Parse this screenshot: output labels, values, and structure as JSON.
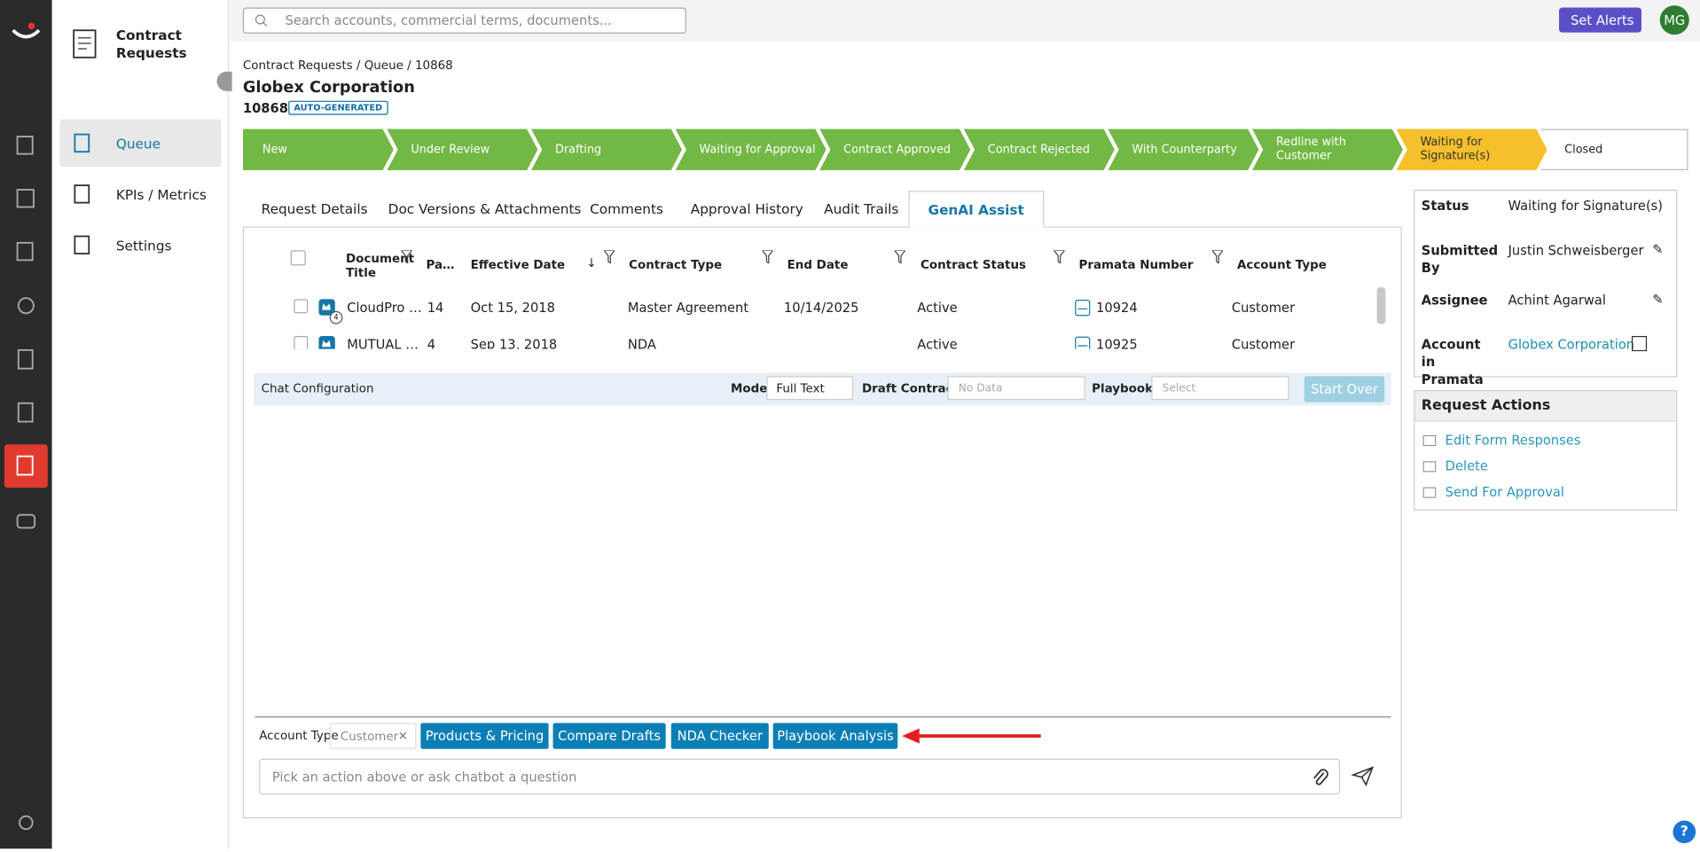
{
  "app": {
    "title": "Contract Requests"
  },
  "search_placeholder": "Search accounts, commercial terms, documents...",
  "header": {
    "set_alerts": "Set Alerts",
    "avatar": "MG"
  },
  "nav": [
    "Queue",
    "KPIs / Metrics",
    "Settings"
  ],
  "breadcrumb": "Contract Requests / Queue / 10868",
  "record": {
    "title": "Globex Corporation",
    "id": "10868",
    "badge": "AUTO-GENERATED"
  },
  "stages": [
    "New",
    "Under Review",
    "Drafting",
    "Waiting for Approval",
    "Contract Approved",
    "Contract Rejected",
    "With Counterparty",
    "Redline with Customer",
    "Waiting for Signature(s)",
    "Closed"
  ],
  "tabs": [
    "Request Details",
    "Doc Versions & Attachments",
    "Comments",
    "Approval History",
    "Audit Trails",
    "GenAI Assist"
  ],
  "table": {
    "columns": [
      "Document Title",
      "Pa…",
      "Effective Date",
      "Contract Type",
      "End Date",
      "Contract Status",
      "Pramata Number",
      "Account Type"
    ],
    "rows": [
      {
        "cells": [
          "CloudPro …",
          "14",
          "Oct 15, 2018",
          "Master Agreement",
          "10/14/2025",
          "Active",
          "10924",
          "Customer"
        ],
        "badge": "4"
      },
      {
        "cells": [
          "MUTUAL …",
          "4",
          "Sep 13, 2018",
          "NDA",
          "",
          "Active",
          "10925",
          "Customer"
        ]
      }
    ]
  },
  "chat_config": {
    "label": "Chat Configuration",
    "mode_label": "Mode:",
    "mode": "Full Text",
    "draft_label": "Draft Contracts:",
    "draft_value": "No Data",
    "playbooks_label": "Playbooks:",
    "playbooks_value": "Select",
    "start_over": "Start Over"
  },
  "actions": {
    "account_type_label": "Account Type",
    "account_type_value": "Customer",
    "buttons": [
      "Products & Pricing",
      "Compare Drafts",
      "NDA Checker",
      "Playbook Analysis"
    ]
  },
  "chat_input_placeholder": "Pick an action above or ask chatbot a question",
  "details": [
    {
      "label": "Status",
      "value": "Waiting for Signature(s)"
    },
    {
      "label": "Submitted By",
      "value": "Justin Schweisberger"
    },
    {
      "label": "Assignee",
      "value": "Achint Agarwal"
    },
    {
      "label": "Account in Pramata",
      "value": "Globex Corporation"
    }
  ],
  "request_actions": {
    "title": "Request Actions",
    "items": [
      "Edit Form Responses",
      "Delete",
      "Send For Approval"
    ]
  }
}
